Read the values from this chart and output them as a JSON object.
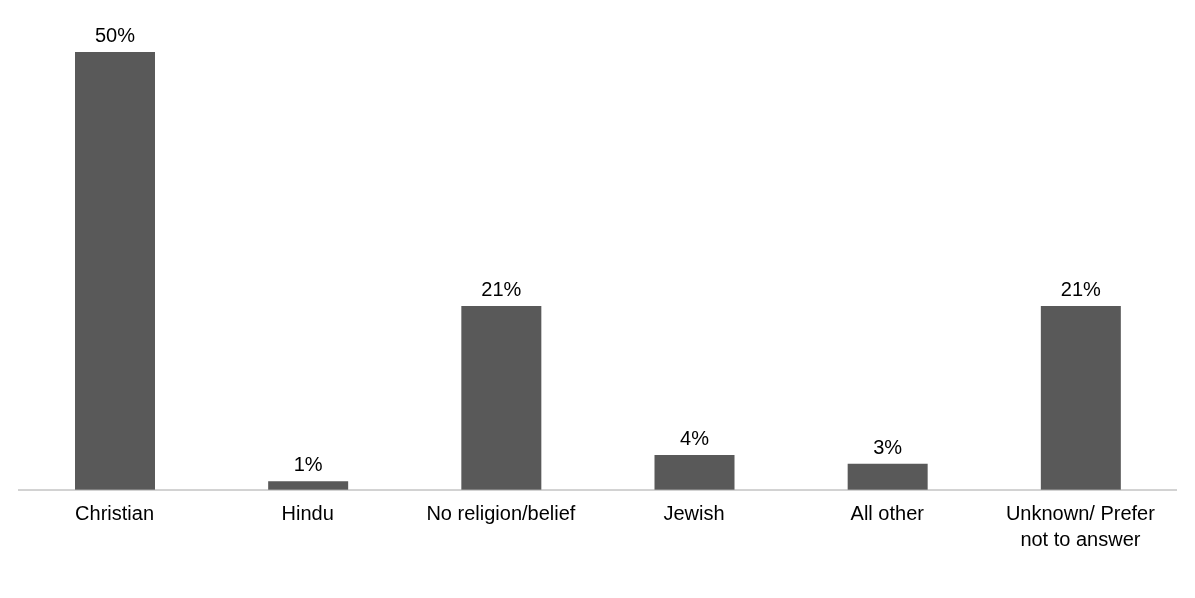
{
  "chart_data": {
    "type": "bar",
    "categories": [
      "Christian",
      "Hindu",
      "No religion/belief",
      "Jewish",
      "All other",
      "Unknown/ Prefer not to answer"
    ],
    "values": [
      50,
      1,
      21,
      4,
      3,
      21
    ],
    "color": "#595959",
    "value_labels": [
      "50%",
      "1%",
      "21%",
      "4%",
      "3%",
      "21%"
    ]
  }
}
